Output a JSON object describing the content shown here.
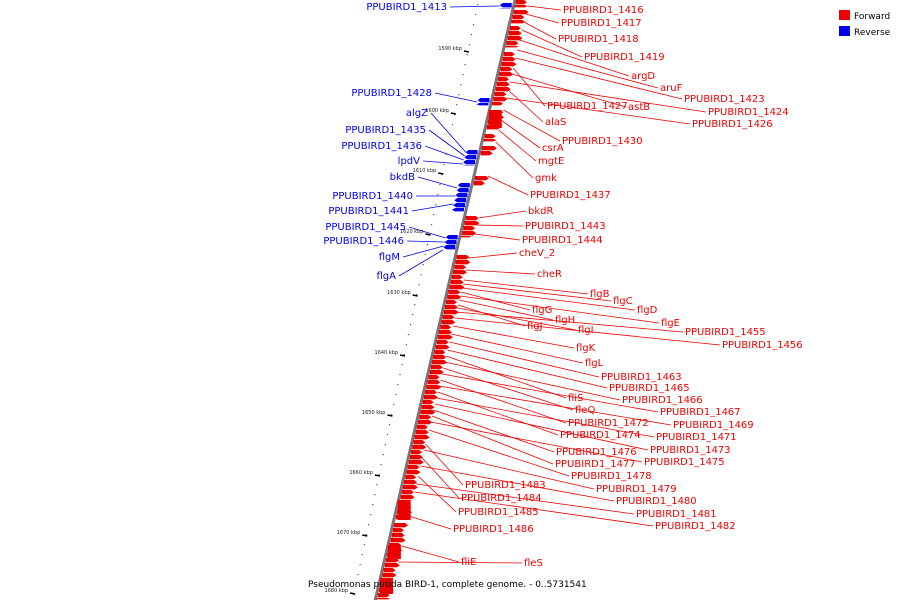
{
  "caption": "Pseudomonas putida BIRD-1, complete genome. - 0..5731541",
  "legend": [
    {
      "label": "Forward",
      "color": "#ee0000"
    },
    {
      "label": "Reverse",
      "color": "#0000ee"
    }
  ],
  "colors": {
    "forward": "#ee0000",
    "reverse": "#0000ee",
    "backbone": "#777777"
  },
  "ticks": [
    "1590 kbp",
    "1600 kbp",
    "1610 kbp",
    "1620 kbp",
    "1630 kbp",
    "1640 kbp",
    "1650 kbp",
    "1660 kbp",
    "1670 kbp",
    "1680 kbp"
  ],
  "forward_labels": [
    "PPUBIRD1_1416",
    "PPUBIRD1_1417",
    "PPUBIRD1_1418",
    "PPUBIRD1_1419",
    "argD",
    "aruF",
    "PPUBIRD1_1423",
    "PPUBIRD1_1427",
    "astB",
    "PPUBIRD1_1424",
    "alaS",
    "PPUBIRD1_1426",
    "PPUBIRD1_1430",
    "csrA",
    "mgtE",
    "gmk",
    "PPUBIRD1_1437",
    "bkdR",
    "PPUBIRD1_1443",
    "PPUBIRD1_1444",
    "cheV_2",
    "cheR",
    "flgB",
    "flgC",
    "flgD",
    "flgG",
    "flgE",
    "flgH",
    "flgJ",
    "flgI",
    "PPUBIRD1_1455",
    "PPUBIRD1_1456",
    "flgK",
    "flgL",
    "PPUBIRD1_1463",
    "PPUBIRD1_1465",
    "fliS",
    "PPUBIRD1_1466",
    "fleQ",
    "PPUBIRD1_1467",
    "PPUBIRD1_1472",
    "PPUBIRD1_1469",
    "PPUBIRD1_1474",
    "PPUBIRD1_1471",
    "PPUBIRD1_1473",
    "PPUBIRD1_1476",
    "PPUBIRD1_1477",
    "PPUBIRD1_1475",
    "PPUBIRD1_1478",
    "PPUBIRD1_1483",
    "PPUBIRD1_1479",
    "PPUBIRD1_1484",
    "PPUBIRD1_1480",
    "PPUBIRD1_1485",
    "PPUBIRD1_1481",
    "PPUBIRD1_1482",
    "PPUBIRD1_1486",
    "fliE",
    "fleS"
  ],
  "reverse_labels": [
    "PPUBIRD1_1413",
    "PPUBIRD1_1428",
    "algZ",
    "PPUBIRD1_1435",
    "PPUBIRD1_1436",
    "lpdV",
    "bkdB",
    "PPUBIRD1_1440",
    "PPUBIRD1_1441",
    "PPUBIRD1_1445",
    "PPUBIRD1_1446",
    "flgM",
    "flgA"
  ]
}
